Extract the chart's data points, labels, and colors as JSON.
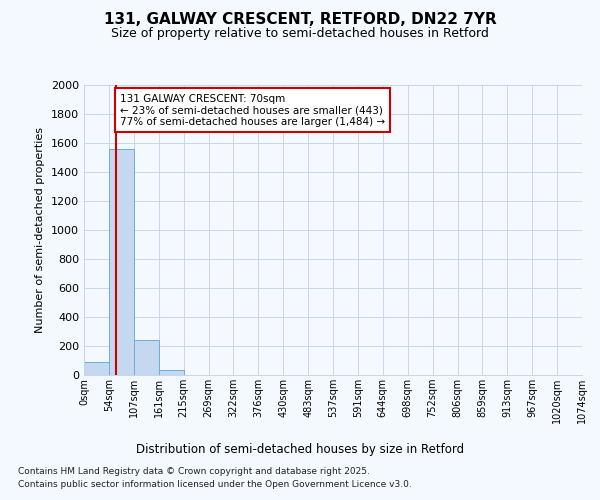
{
  "title": "131, GALWAY CRESCENT, RETFORD, DN22 7YR",
  "subtitle": "Size of property relative to semi-detached houses in Retford",
  "xlabel": "Distribution of semi-detached houses by size in Retford",
  "ylabel": "Number of semi-detached properties",
  "footnote1": "Contains HM Land Registry data © Crown copyright and database right 2025.",
  "footnote2": "Contains public sector information licensed under the Open Government Licence v3.0.",
  "bin_labels": [
    "0sqm",
    "54sqm",
    "107sqm",
    "161sqm",
    "215sqm",
    "269sqm",
    "322sqm",
    "376sqm",
    "430sqm",
    "483sqm",
    "537sqm",
    "591sqm",
    "644sqm",
    "698sqm",
    "752sqm",
    "806sqm",
    "859sqm",
    "913sqm",
    "967sqm",
    "1020sqm",
    "1074sqm"
  ],
  "bar_values": [
    90,
    1560,
    240,
    35,
    0,
    0,
    0,
    0,
    0,
    0,
    0,
    0,
    0,
    0,
    0,
    0,
    0,
    0,
    0,
    0
  ],
  "bar_color": "#c5d8f0",
  "bar_edge_color": "#6baed6",
  "property_line_color": "#cc0000",
  "annotation_text": "131 GALWAY CRESCENT: 70sqm\n← 23% of semi-detached houses are smaller (443)\n77% of semi-detached houses are larger (1,484) →",
  "annotation_box_color": "#cc0000",
  "ylim": [
    0,
    2000
  ],
  "yticks": [
    0,
    200,
    400,
    600,
    800,
    1000,
    1200,
    1400,
    1600,
    1800,
    2000
  ],
  "background_color": "#f4f8ff",
  "plot_bg_color": "#f4f8ff",
  "grid_color": "#c8d4e8"
}
